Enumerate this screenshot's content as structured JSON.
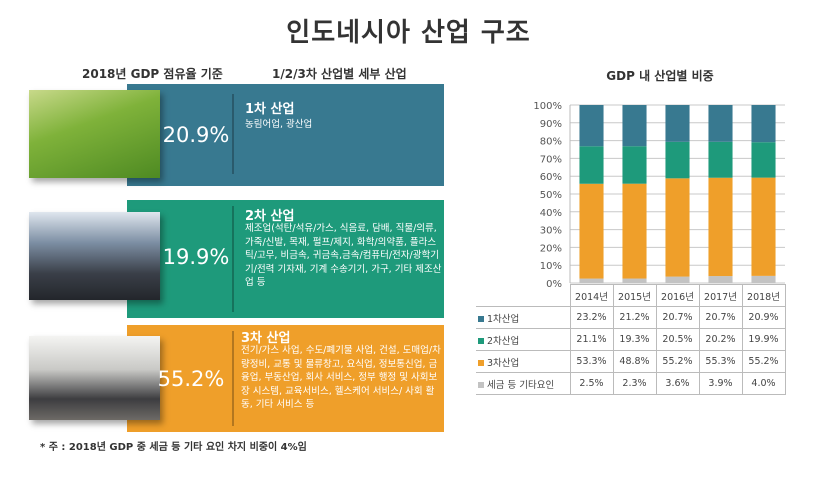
{
  "title": "인도네시아 산업 구조",
  "left": {
    "subtitle_share": "2018년 GDP 점유율 기준",
    "subtitle_detail": "1/2/3차 산업별 세부 산업",
    "industries": [
      {
        "percent": "20.9%",
        "name": "1차 산업",
        "desc": "농림어업, 광산업",
        "color": "#387990",
        "photo": "rice-farmer-photo"
      },
      {
        "percent": "19.9%",
        "name": "2차 산업",
        "desc": "제조업(석탄/석유/가스, 식음료, 담배, 직물/의류, 가죽/신발, 목재, 펄프/제지, 화학/의약품, 플라스틱/고무, 비금속, 귀금속,금속/컴퓨터/전자/광학기기/전력 기자재, 기계 수송기기, 가구, 기타 제조산업 등",
        "color": "#1e9a7b",
        "photo": "factory-workers-photo"
      },
      {
        "percent": "55.2%",
        "name": "3차 산업",
        "desc": "전기/가스 사업, 수도/폐기물 사업, 건설, 도매업/차량정비, 교통 및 물류창고, 요식업, 정보통신업, 금융업, 부동산업, 회사 서비스, 정부 행정 및 사회보장 시스템, 교육서비스, 헬스케어 서비스/ 사회 활동, 기타 서비스 등",
        "color": "#ef9f2a",
        "photo": "business-meeting-photo"
      }
    ],
    "footnote": "* 주 : 2018년 GDP 중 세금 등 기타 요인 차지 비중이 4%임"
  },
  "chart_data": {
    "type": "bar",
    "stacked": "100%",
    "title": "GDP 내 산업별 비중",
    "categories": [
      "2014년",
      "2015년",
      "2016년",
      "2017년",
      "2018년"
    ],
    "yticks": [
      "0%",
      "10%",
      "20%",
      "30%",
      "40%",
      "50%",
      "60%",
      "70%",
      "80%",
      "90%",
      "100%"
    ],
    "ylim": [
      0,
      100
    ],
    "grid": true,
    "legend": "table-below",
    "series": [
      {
        "name": "1차산업",
        "color": "#387990",
        "values": [
          23.2,
          21.2,
          20.7,
          20.7,
          20.9
        ],
        "labels": [
          "23.2%",
          "21.2%",
          "20.7%",
          "20.7%",
          "20.9%"
        ]
      },
      {
        "name": "2차산업",
        "color": "#1e9a7b",
        "values": [
          21.1,
          19.3,
          20.5,
          20.2,
          19.9
        ],
        "labels": [
          "21.1%",
          "19.3%",
          "20.5%",
          "20.2%",
          "19.9%"
        ]
      },
      {
        "name": "3차산업",
        "color": "#ef9f2a",
        "values": [
          53.3,
          48.8,
          55.2,
          55.3,
          55.2
        ],
        "labels": [
          "53.3%",
          "48.8%",
          "55.2%",
          "55.3%",
          "55.2%"
        ]
      },
      {
        "name": "세금 등 기타요인",
        "color": "#c3c3c3",
        "values": [
          2.5,
          2.3,
          3.6,
          3.9,
          4.0
        ],
        "labels": [
          "2.5%",
          "2.3%",
          "3.6%",
          "3.9%",
          "4.0%"
        ]
      }
    ]
  }
}
